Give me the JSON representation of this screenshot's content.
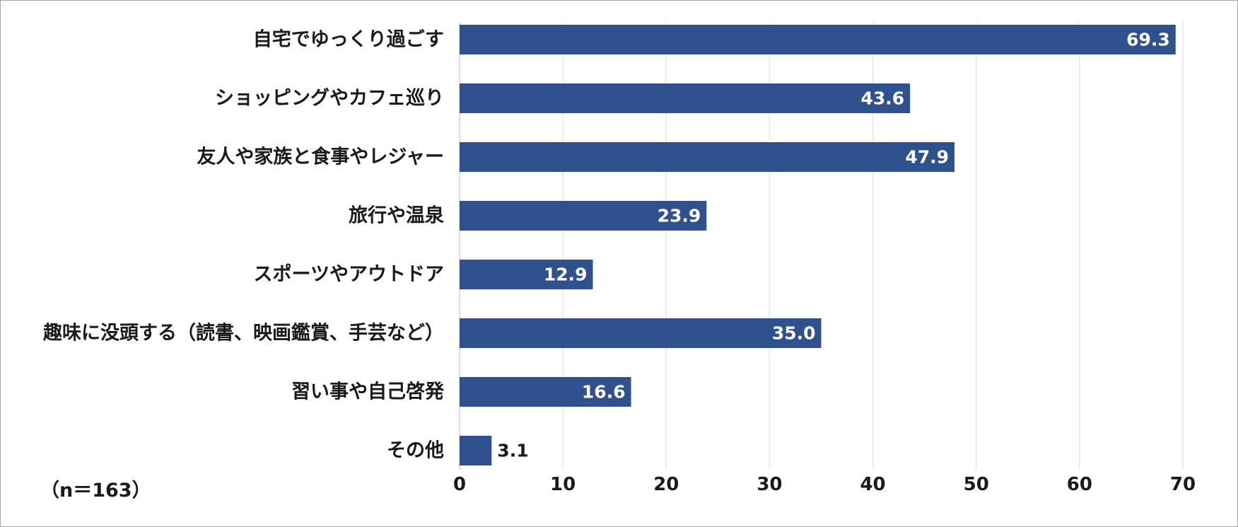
{
  "note": "（n＝163）",
  "colors": {
    "bar": "#2f528f",
    "grid": "#e6e6e6",
    "axis": "#d0d0d0",
    "inside_label": "#ffffff",
    "outside_label": "#1a1a1a"
  },
  "chart_data": {
    "type": "bar",
    "orientation": "horizontal",
    "categories": [
      "自宅でゆっくり過ごす",
      "ショッピングやカフェ巡り",
      "友人や家族と食事やレジャー",
      "旅行や温泉",
      "スポーツやアウトドア",
      "趣味に没頭する（読書、映画鑑賞、手芸など）",
      "習い事や自己啓発",
      "その他"
    ],
    "values": [
      69.3,
      43.6,
      47.9,
      23.9,
      12.9,
      35.0,
      16.6,
      3.1
    ],
    "value_labels": [
      "69.3",
      "43.6",
      "47.9",
      "23.9",
      "12.9",
      "35.0",
      "16.6",
      "3.1"
    ],
    "xlim": [
      0,
      70
    ],
    "xticks": [
      0,
      10,
      20,
      30,
      40,
      50,
      60,
      70
    ],
    "xtick_labels": [
      "0",
      "10",
      "20",
      "30",
      "40",
      "50",
      "60",
      "70"
    ],
    "grid": true,
    "title": "",
    "xlabel": "",
    "ylabel": ""
  }
}
